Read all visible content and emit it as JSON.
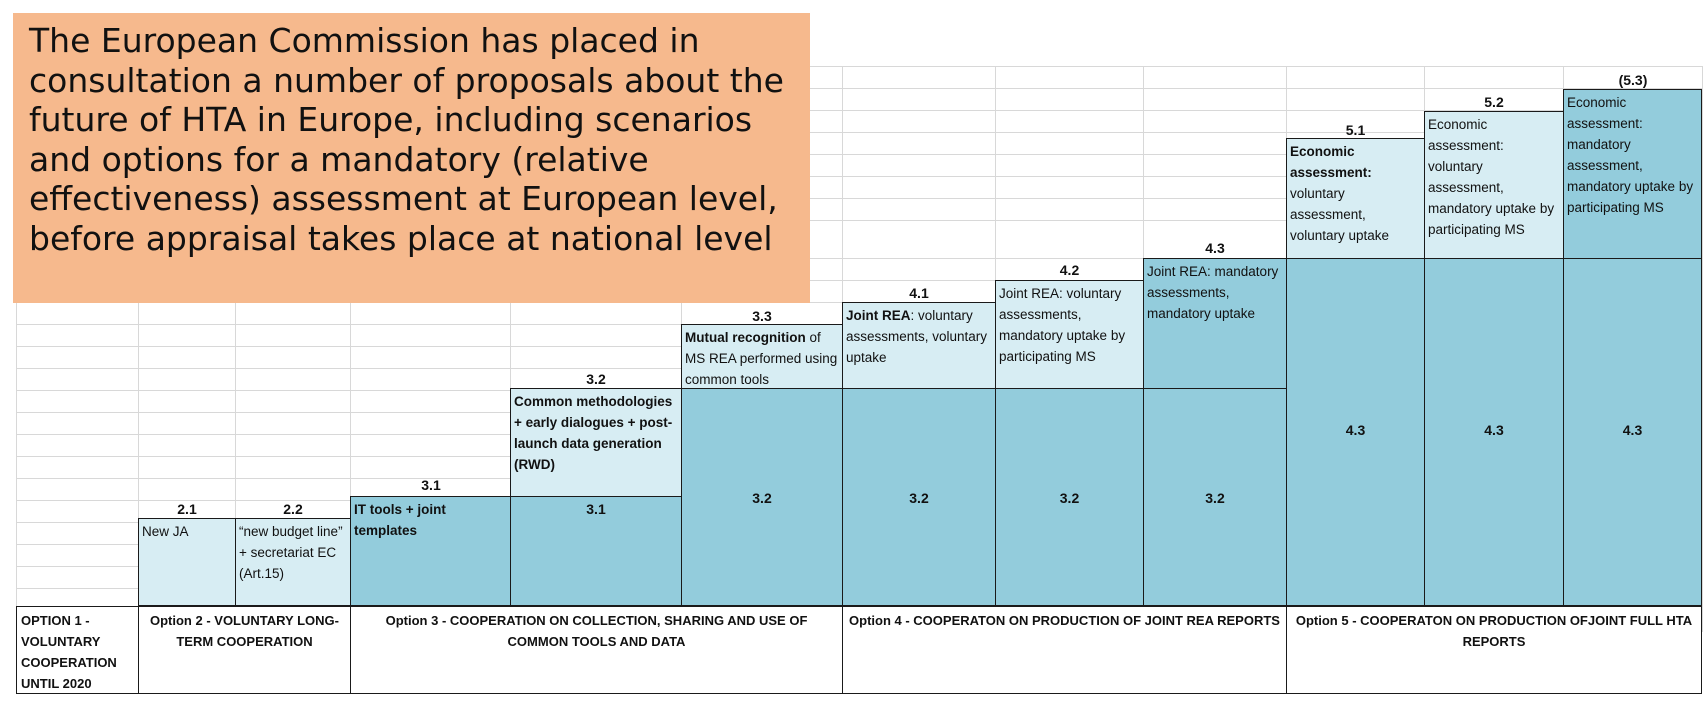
{
  "banner": {
    "text": "The European Commission has placed in consultation a number of proposals about the future of HTA in Europe, including scenarios and options for a mandatory (relative effectiveness) assessment at European level, before appraisal takes place at national level"
  },
  "numbers": {
    "n21": "2.1",
    "n22": "2.2",
    "n31": "3.1",
    "n32": "3.2",
    "n33": "3.3",
    "n41": "4.1",
    "n42": "4.2",
    "n43": "4.3",
    "n51": "5.1",
    "n52": "5.2",
    "n53": "(5.3)"
  },
  "blocks": {
    "b21": {
      "text": "New JA"
    },
    "b22": {
      "text": "“new budget line” + secretariat EC (Art.15)"
    },
    "b31": {
      "bold": "IT tools + joint templates"
    },
    "b32": {
      "bold": "Common methodologies + early dialogues + post-launch data generation (RWD)",
      "ref": "3.1"
    },
    "b33": {
      "bold": "Mutual recognition",
      "text": " of MS REA performed using common tools",
      "ref": "3.2"
    },
    "b41": {
      "bold": "Joint REA",
      "text": ": voluntary assessments, voluntary uptake",
      "ref": "3.2"
    },
    "b42": {
      "text": "Joint REA: voluntary assessments, mandatory uptake by participating MS",
      "ref": "3.2"
    },
    "b43": {
      "text": "Joint REA: mandatory assessments, mandatory uptake",
      "ref": "3.2"
    },
    "b51": {
      "bold": "Economic assessment:",
      "text": " voluntary assessment, voluntary uptake",
      "ref": "4.3"
    },
    "b52": {
      "text": "Economic assessment: voluntary assessment, mandatory uptake by participating MS",
      "ref": "4.3"
    },
    "b53": {
      "text": "Economic assessment: mandatory assessment, mandatory uptake by participating MS",
      "ref": "4.3"
    }
  },
  "options": {
    "opt1": "OPTION 1 - VOLUNTARY COOPERATION UNTIL 2020",
    "opt2": "Option 2 - VOLUNTARY LONG-TERM COOPERATION",
    "opt3": "Option 3 - COOPERATION ON COLLECTION, SHARING AND USE OF COMMON TOOLS AND DATA",
    "opt4": "Option 4 - COOPERATON ON PRODUCTION OF JOINT REA REPORTS",
    "opt5": "Option 5 - COOPERATON ON PRODUCTION OFJOINT FULL HTA REPORTS"
  },
  "colors": {
    "light": "#d7edf3",
    "mid": "#93ccdc",
    "banner": "#f6b98d"
  }
}
